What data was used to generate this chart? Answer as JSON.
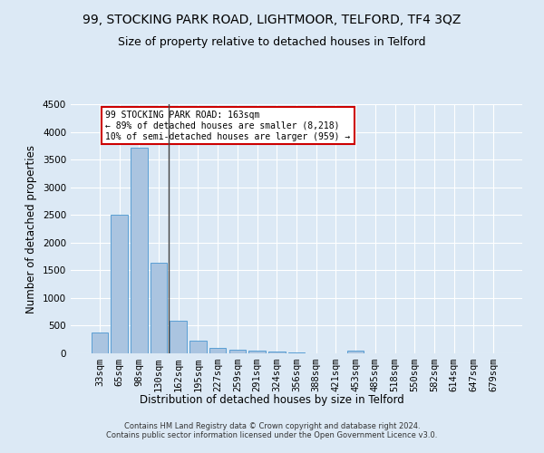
{
  "title": "99, STOCKING PARK ROAD, LIGHTMOOR, TELFORD, TF4 3QZ",
  "subtitle": "Size of property relative to detached houses in Telford",
  "xlabel": "Distribution of detached houses by size in Telford",
  "ylabel": "Number of detached properties",
  "footer_line1": "Contains HM Land Registry data © Crown copyright and database right 2024.",
  "footer_line2": "Contains public sector information licensed under the Open Government Licence v3.0.",
  "categories": [
    "33sqm",
    "65sqm",
    "98sqm",
    "130sqm",
    "162sqm",
    "195sqm",
    "227sqm",
    "259sqm",
    "291sqm",
    "324sqm",
    "356sqm",
    "388sqm",
    "421sqm",
    "453sqm",
    "485sqm",
    "518sqm",
    "550sqm",
    "582sqm",
    "614sqm",
    "647sqm",
    "679sqm"
  ],
  "values": [
    370,
    2500,
    3720,
    1630,
    590,
    230,
    105,
    70,
    45,
    30,
    20,
    5,
    0,
    55,
    0,
    0,
    0,
    0,
    0,
    0,
    0
  ],
  "bar_color": "#aac4e0",
  "bar_edge_color": "#5a9fd4",
  "vline_color": "#444444",
  "annotation_text": "99 STOCKING PARK ROAD: 163sqm\n← 89% of detached houses are smaller (8,218)\n10% of semi-detached houses are larger (959) →",
  "annotation_box_color": "#cc0000",
  "bg_color": "#dce9f5",
  "plot_bg_color": "#dce9f5",
  "ylim": [
    0,
    4500
  ],
  "yticks": [
    0,
    500,
    1000,
    1500,
    2000,
    2500,
    3000,
    3500,
    4000,
    4500
  ],
  "grid_color": "#ffffff",
  "title_fontsize": 10,
  "subtitle_fontsize": 9,
  "axis_label_fontsize": 8.5,
  "tick_fontsize": 7.5,
  "footer_fontsize": 6
}
